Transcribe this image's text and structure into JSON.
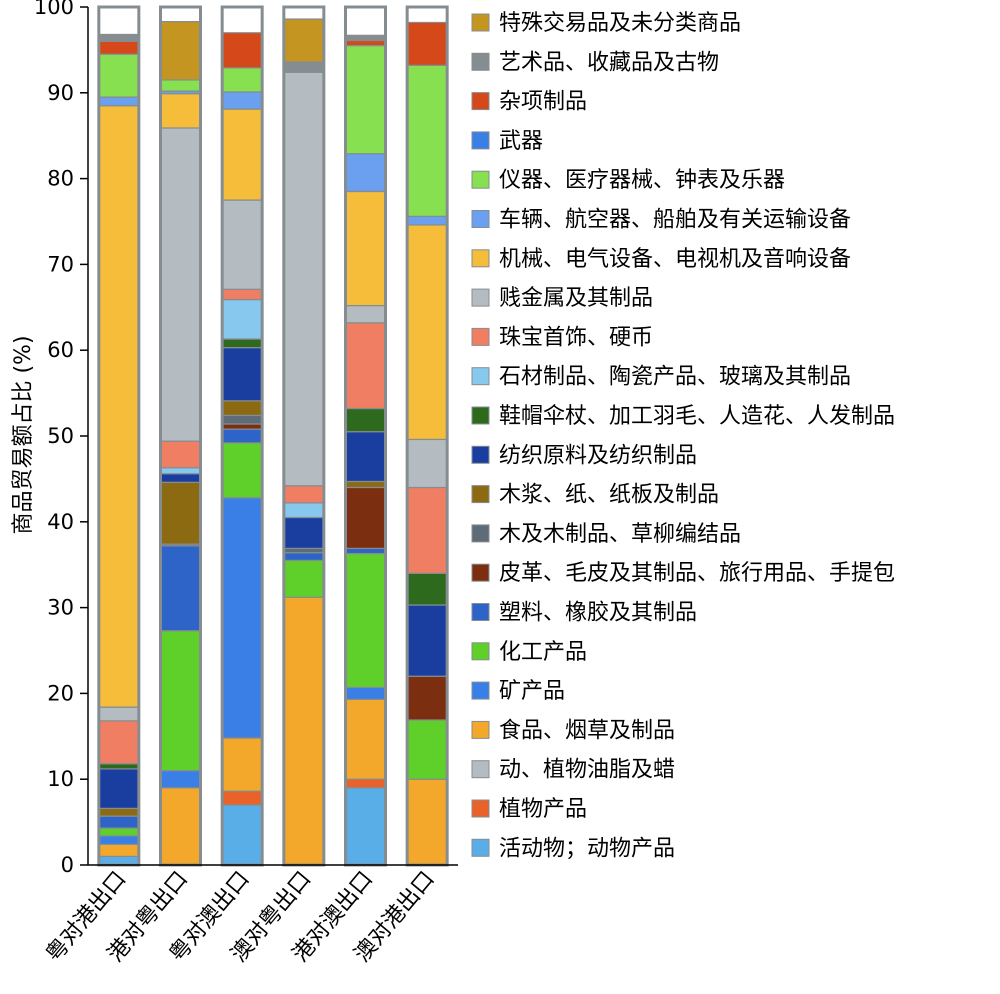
{
  "chart_data": {
    "type": "bar",
    "stacked": true,
    "title": "",
    "xlabel": "",
    "ylabel": "商品贸易额占比 (%)",
    "ylim": [
      0,
      100
    ],
    "yticks": [
      0,
      10,
      20,
      30,
      40,
      50,
      60,
      70,
      80,
      90,
      100
    ],
    "grid": false,
    "legend_position": "right",
    "categories": [
      "粤对港出口",
      "港对粤出口",
      "粤对澳出口",
      "澳对粤出口",
      "港对澳出口",
      "澳对港出口"
    ],
    "series": [
      {
        "name": "活动物；动物产品",
        "color": "#5aaee8",
        "values": [
          1.0,
          0.0,
          7.0,
          0.0,
          9.0,
          0.0
        ]
      },
      {
        "name": "植物产品",
        "color": "#e8622a",
        "values": [
          0.0,
          0.0,
          1.6,
          0.0,
          1.0,
          0.0
        ]
      },
      {
        "name": "动、植物油脂及蜡",
        "color": "#b4bcc2",
        "values": [
          0.0,
          0.0,
          0.0,
          0.0,
          0.0,
          0.0
        ]
      },
      {
        "name": "食品、烟草及制品",
        "color": "#f3a72b",
        "values": [
          1.4,
          9.0,
          6.2,
          31.2,
          9.3,
          10.0
        ]
      },
      {
        "name": "矿产品",
        "color": "#3a7fe6",
        "values": [
          1.0,
          2.0,
          28.0,
          0.0,
          1.4,
          0.0
        ]
      },
      {
        "name": "化工产品",
        "color": "#5fcf2a",
        "values": [
          0.9,
          16.3,
          6.4,
          4.3,
          15.6,
          6.9
        ]
      },
      {
        "name": "塑料、橡胶及其制品",
        "color": "#2e64c8",
        "values": [
          1.4,
          9.9,
          1.6,
          0.9,
          0.6,
          0.0
        ]
      },
      {
        "name": "皮革、毛皮及其制品、旅行用品、手提包",
        "color": "#7c2e10",
        "values": [
          0.0,
          0.0,
          0.6,
          0.0,
          7.1,
          5.1
        ]
      },
      {
        "name": "木及木制品、草柳编结品",
        "color": "#5e6b78",
        "values": [
          0.0,
          0.2,
          1.0,
          0.5,
          0.0,
          0.0
        ]
      },
      {
        "name": "木浆、纸、纸板及制品",
        "color": "#8c6a12",
        "values": [
          0.9,
          7.2,
          1.7,
          0.0,
          0.7,
          0.0
        ]
      },
      {
        "name": "纺织原料及纺织制品",
        "color": "#1a3ea0",
        "values": [
          4.6,
          1.0,
          6.2,
          3.6,
          5.8,
          8.3
        ]
      },
      {
        "name": "鞋帽伞杖、加工羽毛、人造花、人发制品",
        "color": "#2e6a1e",
        "values": [
          0.6,
          0.0,
          1.0,
          0.0,
          2.7,
          3.7
        ]
      },
      {
        "name": "石材制品、陶瓷产品、玻璃及其制品",
        "color": "#86c8ee",
        "values": [
          0.0,
          0.7,
          4.6,
          1.7,
          0.0,
          0.0
        ]
      },
      {
        "name": "珠宝首饰、硬币",
        "color": "#f07e62",
        "values": [
          5.0,
          3.1,
          1.2,
          2.0,
          10.0,
          10.0
        ]
      },
      {
        "name": "贱金属及其制品",
        "color": "#b4bcc2",
        "values": [
          1.6,
          36.5,
          10.4,
          48.2,
          2.0,
          5.6
        ]
      },
      {
        "name": "机械、电气设备、电视机及音响设备",
        "color": "#f5bd3a",
        "values": [
          70.1,
          4.0,
          10.6,
          0.0,
          13.3,
          25.0
        ]
      },
      {
        "name": "车辆、航空器、船舶及有关运输设备",
        "color": "#6b9ff0",
        "values": [
          1.0,
          0.3,
          2.0,
          0.0,
          4.4,
          1.0
        ]
      },
      {
        "name": "仪器、医疗器械、钟表及乐器",
        "color": "#86e050",
        "values": [
          5.0,
          1.3,
          2.8,
          0.0,
          12.6,
          17.6
        ]
      },
      {
        "name": "武器",
        "color": "#3a7fe6",
        "values": [
          0.0,
          0.0,
          0.0,
          0.0,
          0.0,
          0.0
        ]
      },
      {
        "name": "杂项制品",
        "color": "#d4481a",
        "values": [
          1.5,
          0.0,
          4.1,
          0.0,
          0.6,
          5.0
        ]
      },
      {
        "name": "艺术品、收藏品及古物",
        "color": "#868d91",
        "values": [
          0.8,
          0.0,
          0.0,
          1.2,
          0.6,
          0.0
        ]
      },
      {
        "name": "特殊交易品及未分类商品",
        "color": "#c49621",
        "values": [
          0.0,
          6.8,
          0.0,
          5.0,
          0.0,
          0.0
        ]
      }
    ]
  }
}
